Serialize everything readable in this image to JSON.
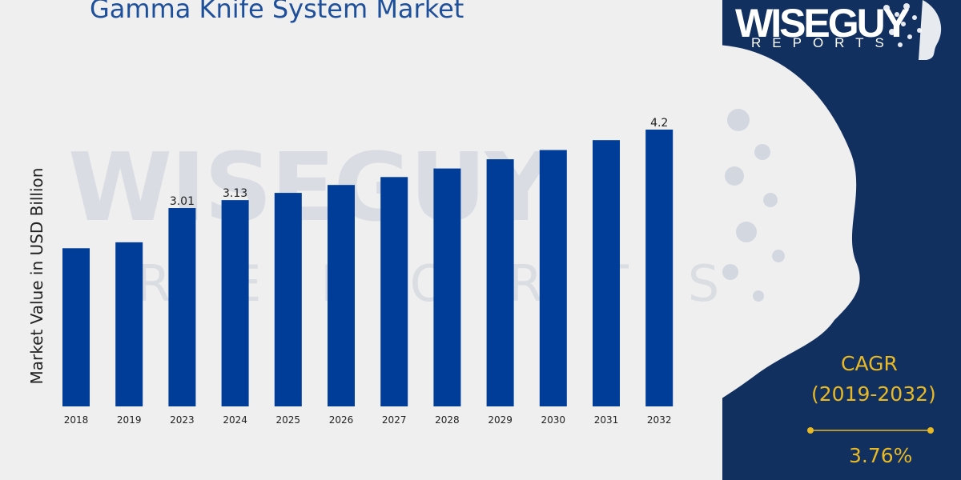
{
  "colors": {
    "bar": "#003d99",
    "panel": "#12305f",
    "accent": "#e8b923",
    "title": "#1e4f9a"
  },
  "brand": {
    "name": "WISEGUY",
    "tagline": "REPORTS"
  },
  "cagr": {
    "label": "CAGR",
    "period": "(2019-2032)",
    "value": "3.76%"
  },
  "chart_data": {
    "type": "bar",
    "title": "Gamma Knife System Market",
    "ylabel": "Market Value in USD Billion",
    "categories": [
      "2018",
      "2019",
      "2023",
      "2024",
      "2025",
      "2026",
      "2027",
      "2028",
      "2029",
      "2030",
      "2031",
      "2032"
    ],
    "values": [
      2.4,
      2.49,
      3.01,
      3.13,
      3.24,
      3.36,
      3.48,
      3.61,
      3.75,
      3.89,
      4.04,
      4.2
    ],
    "data_labels": [
      "",
      "",
      "3.01",
      "3.13",
      "",
      "",
      "",
      "",
      "",
      "",
      "",
      "4.2"
    ],
    "ylim": [
      0,
      4.2
    ],
    "grid": false
  }
}
